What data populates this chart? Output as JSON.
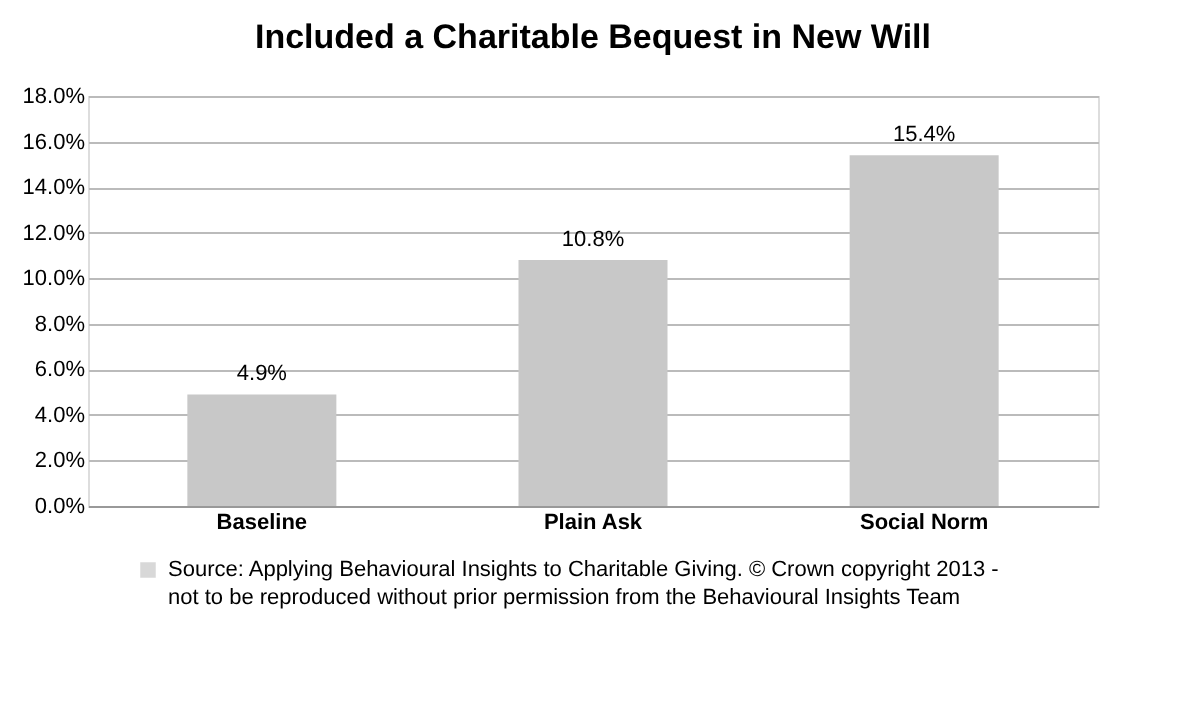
{
  "chart_data": {
    "type": "bar",
    "title": "Included a Charitable Bequest in New Will",
    "categories": [
      "Baseline",
      "Plain Ask",
      "Social Norm"
    ],
    "series": [
      {
        "name": "Source: Applying Behavioural Insights to Charitable Giving. © Crown copyright 2013 - not to be reproduced without prior permission from the Behavioural Insights Team",
        "color": "#c8c8c8",
        "values": [
          4.9,
          10.8,
          15.4
        ]
      }
    ],
    "value_labels": [
      "4.9%",
      "10.8%",
      "15.4%"
    ],
    "ylim": [
      0,
      18
    ],
    "yticks": [
      {
        "value": 0,
        "label": "0.0%"
      },
      {
        "value": 2,
        "label": "2.0%"
      },
      {
        "value": 4,
        "label": "4.0%"
      },
      {
        "value": 6,
        "label": "6.0%"
      },
      {
        "value": 8,
        "label": "8.0%"
      },
      {
        "value": 10,
        "label": "10.0%"
      },
      {
        "value": 12,
        "label": "12.0%"
      },
      {
        "value": 14,
        "label": "14.0%"
      },
      {
        "value": 16,
        "label": "16.0%"
      },
      {
        "value": 18,
        "label": "18.0%"
      }
    ],
    "grid": "y",
    "legend": "bottom"
  }
}
